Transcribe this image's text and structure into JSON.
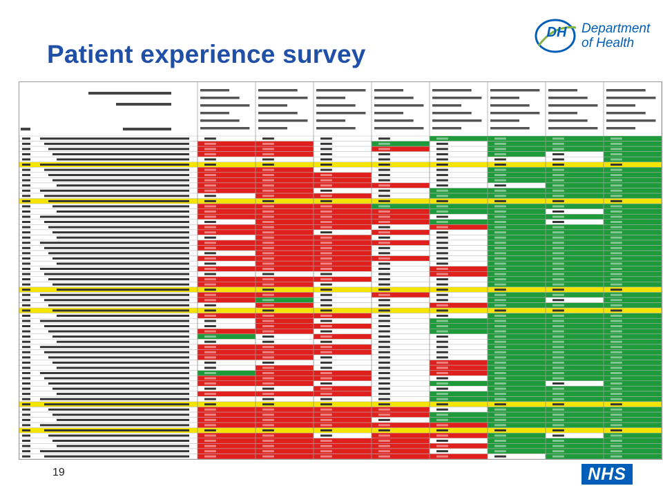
{
  "slide": {
    "title": "Patient experience survey",
    "page_number": "19"
  },
  "logo": {
    "mark_text": "DH",
    "department_text": "Department\nof Health",
    "icon": "dh-swoosh-icon"
  },
  "nhs_logo": {
    "text": "NHS"
  },
  "spreadsheet": {
    "description_colors": {
      "red": "#e0201d",
      "green": "#1e9a3a",
      "yellow": "#f5e400",
      "white": "#ffffff"
    },
    "columns": 8,
    "rows": 62,
    "row_colors": [
      "wwwwgggg",
      "rrwgwggg",
      "rrwrwggg",
      "rrwwwgwg",
      "wwwwwwwg",
      "yyyyyyyy",
      "rrwwwggg",
      "rrrwwggg",
      "rrrwwggg",
      "rrrrwwgg",
      "rrwwgggg",
      "wrrwgggg",
      "yyyyyyyy",
      "rrrggggg",
      "rrrrggwg",
      "rrrrwggg",
      "wrrrggwg",
      "rrrwrggg",
      "rrwrwggg",
      "wrrwwggg",
      "rrrrwggg",
      "rrrwwggg",
      "wrrwwggg",
      "rrrrwggg",
      "wrrwwggg",
      "rrrwrggg",
      "wwwwrggg",
      "rrrwwggg",
      "rrwwwggg",
      "yyyyyyyy",
      "rrwrwggg",
      "rgwwwgwg",
      "wrwwrggg",
      "yyyyyyyy",
      "rrrwwggg",
      "wrwwgggg",
      "wrrwgggg",
      "rrwwgggg",
      "gwrwwggg",
      "wwwwwggg",
      "rrrwwggg",
      "rrrwwggg",
      "rrwwwggg",
      "wwwwrggg",
      "wrwwrggg",
      "grrwrggg",
      "rrrwwggg",
      "rrwwggwg",
      "wwrwwggg",
      "rrrwgggg",
      "wwwwgggg",
      "yyyyyyyy",
      "rrrrwggg",
      "rrrrgggg",
      "rrrwgggg",
      "rrrrrggg",
      "yyyyyyyy",
      "rrwrrgwg",
      "rrrrwggg",
      "rrrrrggg",
      "rrrrwggg",
      "rrrrrwgg"
    ]
  }
}
